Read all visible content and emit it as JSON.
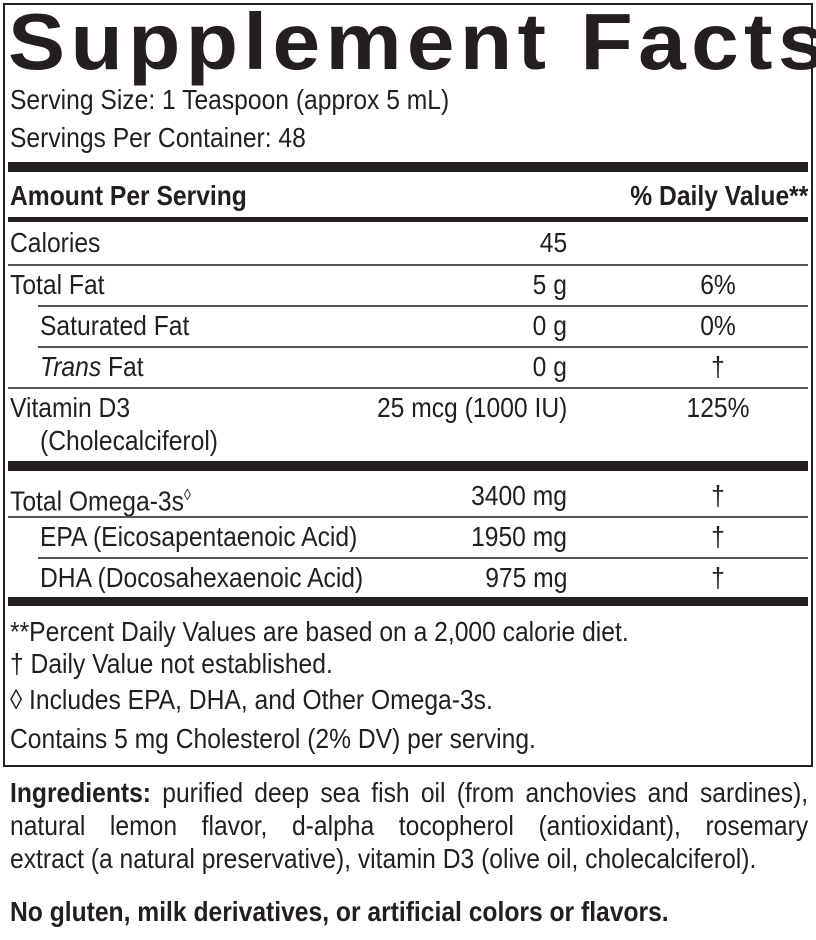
{
  "title": "Supplement Facts",
  "serving_size": "Serving Size: 1 Teaspoon (approx 5 mL)",
  "servings_per_container": "Servings Per Container: 48",
  "header": {
    "amount": "Amount Per Serving",
    "dv": "% Daily Value**"
  },
  "rows": [
    {
      "name": "Calories",
      "amount": "45",
      "dv": ""
    },
    {
      "name": "Total Fat",
      "amount": "5 g",
      "dv": "6%"
    },
    {
      "name": "Saturated Fat",
      "amount": "0 g",
      "dv": "0%"
    },
    {
      "name_italic": "Trans",
      "name": " Fat",
      "amount": "0 g",
      "dv": "†"
    },
    {
      "name": "Vitamin D3",
      "name2": "(Cholecalciferol)",
      "amount": "25 mcg (1000 IU)",
      "dv": "125%"
    },
    {
      "name": "Total Omega-3s",
      "sup": "◊",
      "amount": "3400 mg",
      "dv": "†"
    },
    {
      "name": "EPA (Eicosapentaenoic Acid)",
      "amount": "1950 mg",
      "dv": "†"
    },
    {
      "name": "DHA (Docosahexaenoic Acid)",
      "amount": "975 mg",
      "dv": "†"
    }
  ],
  "footnotes": [
    "**Percent Daily Values are based on a 2,000 calorie diet.",
    "† Daily Value not established.",
    "◊ Includes EPA, DHA, and Other Omega-3s.",
    "Contains 5 mg Cholesterol (2% DV) per serving."
  ],
  "ingredients": {
    "label": "Ingredients:",
    "lines": [
      " purified deep sea fish oil (from anchovies and sardines),",
      "natural lemon flavor, d-alpha tocopherol (antioxidant), rosemary",
      "extract (a natural preservative), vitamin D3 (olive oil, cholecalciferol)."
    ]
  },
  "allergen_statement": "No gluten, milk derivatives, or artificial colors or flavors."
}
